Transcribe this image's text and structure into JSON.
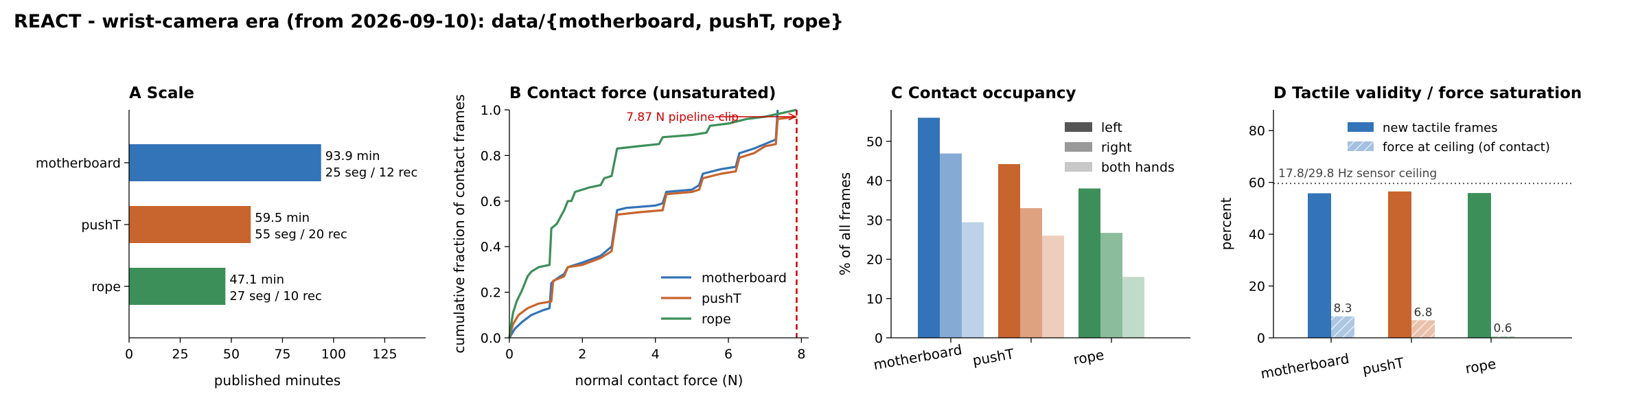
{
  "figure": {
    "title": "REACT - wrist-camera era (from 2026-09-10): data/{motherboard, pushT, rope}"
  },
  "colors": {
    "motherboard": "#3373b8",
    "pushT": "#c8642d",
    "rope": "#3d8f59",
    "clip": "#cc0000",
    "axis": "#000000"
  },
  "chart_data": [
    {
      "type": "bar",
      "orientation": "horizontal",
      "panel": "A",
      "title": "Scale",
      "xlabel": "published minutes",
      "ylabel": "",
      "xlim": [
        0,
        145
      ],
      "xticks": [
        0,
        25,
        50,
        75,
        100,
        125
      ],
      "categories": [
        "motherboard",
        "pushT",
        "rope"
      ],
      "values": [
        93.9,
        59.5,
        47.1
      ],
      "annotations": [
        [
          "93.9 min",
          "25 seg / 12 rec"
        ],
        [
          "59.5 min",
          "55 seg / 20 rec"
        ],
        [
          "47.1 min",
          "27 seg / 10 rec"
        ]
      ]
    },
    {
      "type": "line",
      "panel": "B",
      "title": "Contact force (unsaturated)",
      "xlabel": "normal contact force (N)",
      "ylabel": "cumulative fraction of contact frames",
      "xlim": [
        0,
        8.2
      ],
      "ylim": [
        0,
        1.0
      ],
      "xticks": [
        0,
        2,
        4,
        6,
        8
      ],
      "yticks": [
        0.0,
        0.2,
        0.4,
        0.6,
        0.8,
        1.0
      ],
      "legend": "lower-right",
      "clip_value": 7.87,
      "clip_label": "7.87 N pipeline clip",
      "series": [
        {
          "name": "motherboard",
          "points": [
            [
              0.0,
              0.0
            ],
            [
              0.15,
              0.04
            ],
            [
              0.35,
              0.07
            ],
            [
              0.6,
              0.1
            ],
            [
              0.9,
              0.12
            ],
            [
              1.1,
              0.13
            ],
            [
              1.15,
              0.24
            ],
            [
              1.3,
              0.26
            ],
            [
              1.5,
              0.28
            ],
            [
              1.6,
              0.31
            ],
            [
              2.0,
              0.33
            ],
            [
              2.5,
              0.36
            ],
            [
              2.8,
              0.4
            ],
            [
              2.95,
              0.56
            ],
            [
              3.2,
              0.57
            ],
            [
              4.0,
              0.58
            ],
            [
              4.2,
              0.59
            ],
            [
              4.3,
              0.64
            ],
            [
              5.0,
              0.65
            ],
            [
              5.2,
              0.67
            ],
            [
              5.3,
              0.72
            ],
            [
              5.8,
              0.74
            ],
            [
              6.2,
              0.75
            ],
            [
              6.3,
              0.81
            ],
            [
              6.7,
              0.83
            ],
            [
              7.0,
              0.85
            ],
            [
              7.3,
              0.87
            ],
            [
              7.35,
              1.0
            ]
          ]
        },
        {
          "name": "pushT",
          "points": [
            [
              0.0,
              0.0
            ],
            [
              0.1,
              0.06
            ],
            [
              0.25,
              0.1
            ],
            [
              0.5,
              0.13
            ],
            [
              0.8,
              0.15
            ],
            [
              1.15,
              0.16
            ],
            [
              1.2,
              0.25
            ],
            [
              1.5,
              0.27
            ],
            [
              1.6,
              0.31
            ],
            [
              2.0,
              0.32
            ],
            [
              2.5,
              0.35
            ],
            [
              2.8,
              0.38
            ],
            [
              2.95,
              0.54
            ],
            [
              3.5,
              0.55
            ],
            [
              4.2,
              0.56
            ],
            [
              4.3,
              0.63
            ],
            [
              5.0,
              0.64
            ],
            [
              5.2,
              0.65
            ],
            [
              5.3,
              0.7
            ],
            [
              5.8,
              0.72
            ],
            [
              6.2,
              0.73
            ],
            [
              6.3,
              0.79
            ],
            [
              6.7,
              0.81
            ],
            [
              7.0,
              0.84
            ],
            [
              7.3,
              0.85
            ],
            [
              7.35,
              0.96
            ],
            [
              7.87,
              0.97
            ]
          ]
        },
        {
          "name": "rope",
          "points": [
            [
              0.0,
              0.0
            ],
            [
              0.05,
              0.06
            ],
            [
              0.1,
              0.11
            ],
            [
              0.2,
              0.16
            ],
            [
              0.35,
              0.21
            ],
            [
              0.5,
              0.27
            ],
            [
              0.6,
              0.29
            ],
            [
              0.8,
              0.31
            ],
            [
              1.1,
              0.32
            ],
            [
              1.15,
              0.48
            ],
            [
              1.3,
              0.5
            ],
            [
              1.4,
              0.53
            ],
            [
              1.5,
              0.56
            ],
            [
              1.6,
              0.6
            ],
            [
              1.7,
              0.6
            ],
            [
              1.8,
              0.64
            ],
            [
              2.2,
              0.66
            ],
            [
              2.5,
              0.67
            ],
            [
              2.6,
              0.7
            ],
            [
              2.8,
              0.71
            ],
            [
              2.95,
              0.83
            ],
            [
              3.5,
              0.84
            ],
            [
              4.1,
              0.85
            ],
            [
              4.2,
              0.88
            ],
            [
              5.0,
              0.89
            ],
            [
              5.4,
              0.9
            ],
            [
              5.5,
              0.93
            ],
            [
              6.0,
              0.94
            ],
            [
              6.5,
              0.96
            ],
            [
              7.0,
              0.97
            ],
            [
              7.3,
              0.98
            ],
            [
              7.87,
              1.0
            ]
          ]
        }
      ]
    },
    {
      "type": "bar",
      "panel": "C",
      "title": "Contact occupancy",
      "xlabel": "",
      "ylabel": "% of all frames",
      "ylim": [
        0,
        58
      ],
      "yticks": [
        0,
        10,
        20,
        30,
        40,
        50
      ],
      "legend": "top-right",
      "categories": [
        "motherboard",
        "pushT",
        "rope"
      ],
      "series": [
        {
          "name": "left",
          "values": [
            56.0,
            44.2,
            38.0
          ],
          "opacity": 1.0,
          "legend_color": "#555555"
        },
        {
          "name": "right",
          "values": [
            46.9,
            33.0,
            26.7
          ],
          "opacity": 0.6,
          "legend_color": "#999999"
        },
        {
          "name": "both hands",
          "values": [
            29.4,
            26.0,
            15.5
          ],
          "opacity": 0.32,
          "legend_color": "#c8c8c8"
        }
      ]
    },
    {
      "type": "bar",
      "panel": "D",
      "title": "Tactile validity / force saturation",
      "xlabel": "",
      "ylabel": "percent",
      "ylim": [
        0,
        88
      ],
      "yticks": [
        0,
        20,
        40,
        60,
        80
      ],
      "legend": "top-center",
      "reference_value": 59.6,
      "reference_label": "17.8/29.8 Hz sensor ceiling",
      "categories": [
        "motherboard",
        "pushT",
        "rope"
      ],
      "series": [
        {
          "name": "new tactile frames",
          "values": [
            55.8,
            56.5,
            55.9
          ]
        },
        {
          "name": "force at ceiling (of contact)",
          "values": [
            8.3,
            6.8,
            0.6
          ],
          "labels": [
            "8.3",
            "6.8",
            "0.6"
          ]
        }
      ]
    }
  ]
}
